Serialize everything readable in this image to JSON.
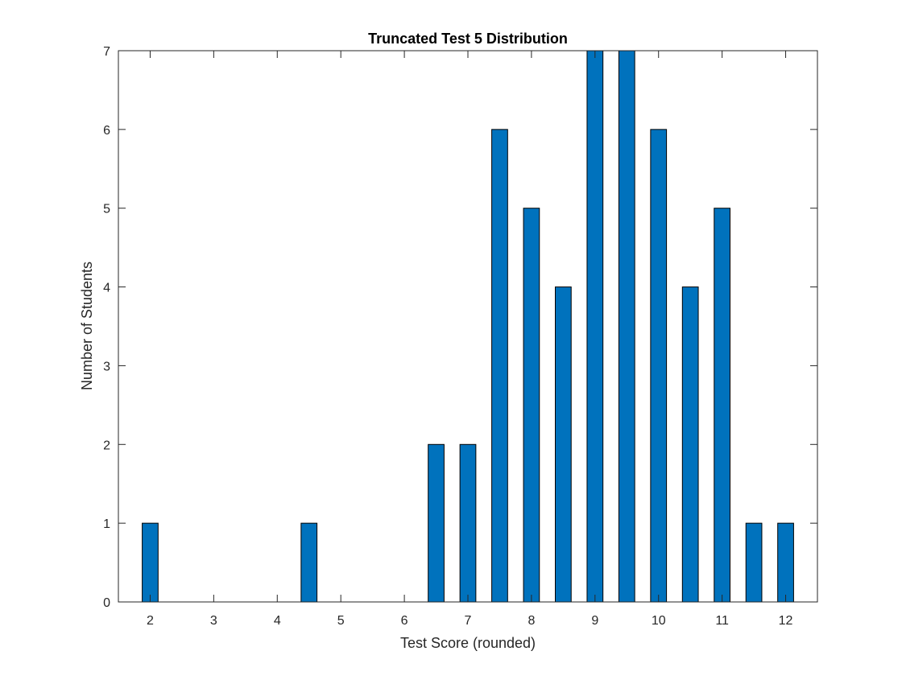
{
  "chart_data": {
    "type": "bar",
    "title": "Truncated Test 5 Distribution",
    "xlabel": "Test Score (rounded)",
    "ylabel": "Number of Students",
    "x": [
      2,
      4.5,
      6.5,
      7,
      7.5,
      8,
      8.5,
      9,
      9.5,
      10,
      10.5,
      11,
      11.5,
      12
    ],
    "values": [
      1,
      1,
      2,
      2,
      6,
      5,
      4,
      7,
      7,
      6,
      4,
      5,
      1,
      1
    ],
    "bar_width": 0.25,
    "xlim": [
      1.5,
      12.5
    ],
    "ylim": [
      0,
      7
    ],
    "xticks": [
      2,
      3,
      4,
      5,
      6,
      7,
      8,
      9,
      10,
      11,
      12
    ],
    "yticks": [
      0,
      1,
      2,
      3,
      4,
      5,
      6,
      7
    ],
    "grid": false,
    "bar_color": "#0072BD",
    "edge_color": "#000000"
  }
}
